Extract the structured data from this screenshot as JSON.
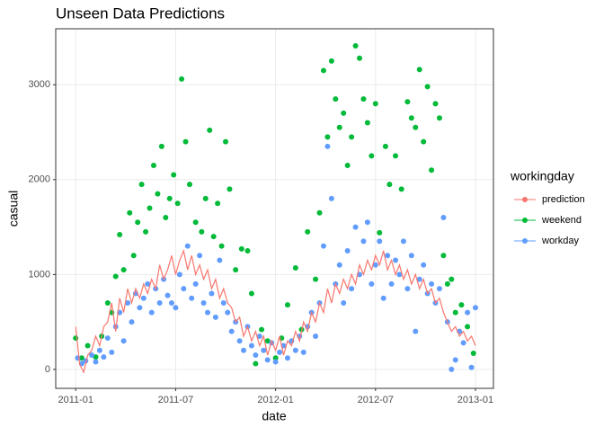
{
  "chart_data": {
    "type": "scatter",
    "title": "Unseen Data Predictions",
    "x_label": "date",
    "y_label": "casual",
    "legend_title": "workingday",
    "legend_position": "right",
    "grid": true,
    "xlim": [
      2010.9,
      2013.09
    ],
    "ylim": [
      -200,
      3590
    ],
    "xticks": [
      {
        "value": 2011.0,
        "label": "2011-01"
      },
      {
        "value": 2011.5,
        "label": "2011-07"
      },
      {
        "value": 2012.0,
        "label": "2012-01"
      },
      {
        "value": 2012.5,
        "label": "2012-07"
      },
      {
        "value": 2013.0,
        "label": "2013-01"
      }
    ],
    "yticks": [
      0,
      1000,
      2000,
      3000
    ],
    "series": [
      {
        "name": "prediction",
        "type": "line",
        "color": "#F8766D",
        "x": [
          2011.0,
          2011.02,
          2011.04,
          2011.06,
          2011.08,
          2011.1,
          2011.12,
          2011.14,
          2011.16,
          2011.18,
          2011.2,
          2011.22,
          2011.24,
          2011.26,
          2011.28,
          2011.3,
          2011.32,
          2011.34,
          2011.36,
          2011.38,
          2011.4,
          2011.42,
          2011.44,
          2011.46,
          2011.48,
          2011.5,
          2011.52,
          2011.54,
          2011.56,
          2011.58,
          2011.6,
          2011.62,
          2011.64,
          2011.66,
          2011.68,
          2011.7,
          2011.72,
          2011.74,
          2011.76,
          2011.78,
          2011.8,
          2011.82,
          2011.84,
          2011.86,
          2011.88,
          2011.9,
          2011.92,
          2011.94,
          2011.96,
          2011.98,
          2012.0,
          2012.02,
          2012.04,
          2012.06,
          2012.08,
          2012.1,
          2012.12,
          2012.14,
          2012.16,
          2012.18,
          2012.2,
          2012.22,
          2012.24,
          2012.26,
          2012.28,
          2012.3,
          2012.32,
          2012.34,
          2012.36,
          2012.38,
          2012.4,
          2012.42,
          2012.44,
          2012.46,
          2012.48,
          2012.5,
          2012.52,
          2012.54,
          2012.56,
          2012.58,
          2012.6,
          2012.62,
          2012.64,
          2012.66,
          2012.68,
          2012.7,
          2012.72,
          2012.74,
          2012.76,
          2012.78,
          2012.8,
          2012.82,
          2012.84,
          2012.86,
          2012.88,
          2012.9,
          2012.92,
          2012.94,
          2012.96,
          2012.98,
          2013.0
        ],
        "values": [
          450,
          50,
          -30,
          150,
          200,
          350,
          250,
          450,
          500,
          700,
          400,
          750,
          600,
          850,
          700,
          850,
          750,
          900,
          800,
          950,
          850,
          1100,
          950,
          1050,
          1200,
          1000,
          1150,
          1250,
          1050,
          1200,
          1000,
          1100,
          950,
          1050,
          850,
          950,
          750,
          850,
          700,
          650,
          500,
          550,
          350,
          450,
          300,
          400,
          250,
          350,
          150,
          300,
          200,
          350,
          150,
          300,
          250,
          400,
          300,
          500,
          400,
          600,
          500,
          700,
          600,
          850,
          700,
          900,
          800,
          950,
          850,
          1000,
          900,
          1100,
          1000,
          1150,
          1050,
          1200,
          1100,
          1250,
          1050,
          1150,
          1000,
          1100,
          950,
          1050,
          900,
          1000,
          850,
          950,
          800,
          850,
          700,
          750,
          600,
          500,
          400,
          450,
          350,
          400,
          300,
          350,
          250
        ]
      },
      {
        "name": "weekend",
        "type": "scatter",
        "color": "#00BA38",
        "x": [
          2011.0,
          2011.03,
          2011.06,
          2011.1,
          2011.13,
          2011.16,
          2011.18,
          2011.2,
          2011.22,
          2011.24,
          2011.27,
          2011.29,
          2011.31,
          2011.33,
          2011.35,
          2011.37,
          2011.39,
          2011.41,
          2011.43,
          2011.45,
          2011.47,
          2011.49,
          2011.51,
          2011.53,
          2011.55,
          2011.57,
          2011.6,
          2011.63,
          2011.65,
          2011.67,
          2011.69,
          2011.71,
          2011.73,
          2011.75,
          2011.77,
          2011.8,
          2011.83,
          2011.86,
          2011.88,
          2011.9,
          2011.93,
          2011.96,
          2012.0,
          2012.03,
          2012.06,
          2012.1,
          2012.13,
          2012.16,
          2012.2,
          2012.22,
          2012.24,
          2012.26,
          2012.28,
          2012.3,
          2012.32,
          2012.34,
          2012.36,
          2012.38,
          2012.4,
          2012.42,
          2012.44,
          2012.46,
          2012.48,
          2012.5,
          2012.52,
          2012.55,
          2012.57,
          2012.6,
          2012.63,
          2012.66,
          2012.68,
          2012.7,
          2012.72,
          2012.74,
          2012.76,
          2012.78,
          2012.8,
          2012.82,
          2012.84,
          2012.86,
          2012.88,
          2012.9,
          2012.93,
          2012.96,
          2012.99
        ],
        "values": [
          330,
          120,
          250,
          130,
          350,
          700,
          600,
          980,
          1420,
          1050,
          1650,
          1200,
          1550,
          1950,
          1450,
          1700,
          2150,
          1850,
          2350,
          1600,
          1800,
          2050,
          1750,
          3060,
          2400,
          1950,
          1550,
          1450,
          1800,
          2520,
          1400,
          1750,
          1300,
          2400,
          1900,
          1050,
          1270,
          1250,
          800,
          60,
          420,
          300,
          120,
          330,
          680,
          1070,
          420,
          1450,
          950,
          1650,
          3150,
          2450,
          3250,
          2850,
          2550,
          2700,
          2150,
          2450,
          3410,
          3280,
          2850,
          2600,
          2250,
          2800,
          1440,
          2350,
          1950,
          2250,
          1900,
          2820,
          2650,
          2550,
          3160,
          2400,
          2980,
          2100,
          2800,
          2650,
          1200,
          900,
          950,
          600,
          680,
          450,
          170
        ]
      },
      {
        "name": "workday",
        "type": "scatter",
        "color": "#619CFF",
        "x": [
          2011.01,
          2011.03,
          2011.05,
          2011.08,
          2011.1,
          2011.12,
          2011.14,
          2011.16,
          2011.18,
          2011.2,
          2011.22,
          2011.24,
          2011.26,
          2011.28,
          2011.3,
          2011.32,
          2011.34,
          2011.36,
          2011.38,
          2011.4,
          2011.42,
          2011.44,
          2011.46,
          2011.48,
          2011.5,
          2011.52,
          2011.54,
          2011.56,
          2011.58,
          2011.6,
          2011.62,
          2011.64,
          2011.66,
          2011.68,
          2011.7,
          2011.72,
          2011.74,
          2011.76,
          2011.78,
          2011.8,
          2011.82,
          2011.84,
          2011.86,
          2011.88,
          2011.9,
          2011.92,
          2011.94,
          2011.96,
          2011.98,
          2012.0,
          2012.02,
          2012.04,
          2012.06,
          2012.08,
          2012.1,
          2012.12,
          2012.14,
          2012.16,
          2012.18,
          2012.2,
          2012.22,
          2012.24,
          2012.26,
          2012.28,
          2012.3,
          2012.32,
          2012.34,
          2012.36,
          2012.38,
          2012.4,
          2012.42,
          2012.44,
          2012.46,
          2012.48,
          2012.5,
          2012.52,
          2012.54,
          2012.56,
          2012.58,
          2012.6,
          2012.62,
          2012.64,
          2012.66,
          2012.68,
          2012.7,
          2012.72,
          2012.74,
          2012.76,
          2012.78,
          2012.8,
          2012.82,
          2012.84,
          2012.86,
          2012.88,
          2012.9,
          2012.92,
          2012.94,
          2012.96,
          2012.98,
          2013.0
        ],
        "values": [
          120,
          60,
          90,
          150,
          80,
          200,
          130,
          330,
          180,
          450,
          600,
          300,
          700,
          500,
          800,
          650,
          750,
          900,
          600,
          850,
          700,
          950,
          780,
          700,
          650,
          1000,
          850,
          1300,
          750,
          900,
          1200,
          700,
          600,
          800,
          550,
          1150,
          700,
          600,
          400,
          500,
          300,
          200,
          450,
          250,
          150,
          350,
          200,
          100,
          280,
          80,
          180,
          250,
          120,
          300,
          200,
          350,
          180,
          450,
          600,
          350,
          700,
          1300,
          2350,
          1800,
          900,
          1100,
          700,
          1250,
          850,
          1500,
          1000,
          1350,
          1550,
          900,
          1100,
          1350,
          750,
          1200,
          900,
          1150,
          1000,
          1350,
          850,
          1200,
          400,
          950,
          1100,
          800,
          900,
          700,
          850,
          1600,
          500,
          0,
          100,
          400,
          280,
          600,
          20,
          650
        ]
      }
    ]
  }
}
